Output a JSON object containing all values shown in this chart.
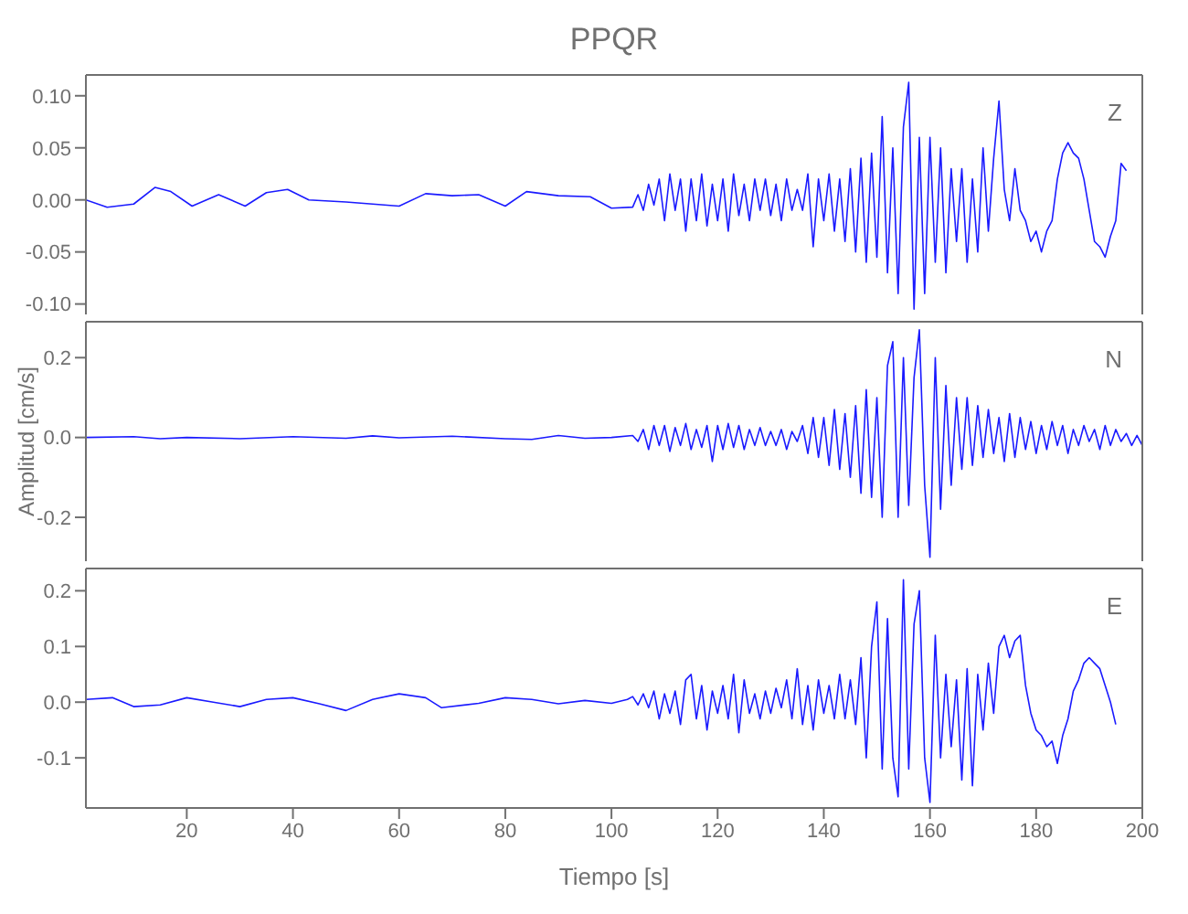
{
  "chart_data": [
    {
      "type": "line",
      "title": "PPQR",
      "annotations": [
        "Z"
      ],
      "color": "#1a1aff",
      "xlim": [
        1,
        200
      ],
      "xticks": [
        20,
        40,
        60,
        80,
        100,
        120,
        140,
        160,
        180,
        200
      ],
      "ylim": [
        -0.11,
        0.12
      ],
      "yticks": [
        {
          "value": -0.1,
          "label": "-0.10"
        },
        {
          "value": -0.05,
          "label": "-0.05"
        },
        {
          "value": 0,
          "label": "0.00"
        },
        {
          "value": 0.05,
          "label": "0.05"
        },
        {
          "value": 0.1,
          "label": "0.10"
        }
      ],
      "tick_labels": "y",
      "x": [
        1,
        5,
        10,
        14,
        17,
        21,
        26,
        31,
        35,
        39,
        43,
        50,
        55,
        60,
        65,
        70,
        75,
        80,
        84,
        90,
        96,
        100,
        104,
        105,
        106,
        107,
        108,
        109,
        110,
        111,
        112,
        113,
        114,
        115,
        116,
        117,
        118,
        119,
        120,
        121,
        122,
        123,
        124,
        125,
        126,
        127,
        128,
        129,
        130,
        131,
        132,
        133,
        134,
        135,
        136,
        137,
        138,
        139,
        140,
        141,
        142,
        143,
        144,
        145,
        146,
        147,
        148,
        149,
        150,
        151,
        152,
        153,
        154,
        155,
        156,
        157,
        158,
        159,
        160,
        161,
        162,
        163,
        164,
        165,
        166,
        167,
        168,
        169,
        170,
        171,
        172,
        173,
        174,
        175,
        176,
        177,
        178,
        179,
        180,
        181,
        182,
        183,
        184,
        185,
        186,
        187,
        188,
        189,
        190,
        191,
        192,
        193,
        194,
        195,
        196,
        197
      ],
      "values": [
        0,
        -0.007,
        -0.004,
        0.012,
        0.008,
        -0.006,
        0.005,
        -0.006,
        0.007,
        0.01,
        0,
        -0.002,
        -0.004,
        -0.006,
        0.006,
        0.004,
        0.005,
        -0.006,
        0.008,
        0.004,
        0.003,
        -0.008,
        -0.007,
        0.005,
        -0.01,
        0.015,
        -0.005,
        0.02,
        -0.02,
        0.025,
        -0.01,
        0.02,
        -0.03,
        0.02,
        -0.02,
        0.025,
        -0.025,
        0.015,
        -0.02,
        0.02,
        -0.03,
        0.025,
        -0.015,
        0.015,
        -0.02,
        0.02,
        -0.01,
        0.02,
        -0.015,
        0.015,
        -0.02,
        0.02,
        -0.01,
        0.01,
        -0.01,
        0.025,
        -0.045,
        0.02,
        -0.02,
        0.025,
        -0.03,
        0.02,
        -0.04,
        0.03,
        -0.05,
        0.04,
        -0.06,
        0.045,
        -0.055,
        0.08,
        -0.07,
        0.05,
        -0.09,
        0.07,
        0.113,
        -0.105,
        0.06,
        -0.09,
        0.06,
        -0.06,
        0.05,
        -0.07,
        0.03,
        -0.04,
        0.03,
        -0.06,
        0.02,
        -0.05,
        0.05,
        -0.03,
        0.04,
        0.095,
        0.01,
        -0.02,
        0.03,
        -0.01,
        -0.02,
        -0.04,
        -0.03,
        -0.05,
        -0.03,
        -0.02,
        0.02,
        0.045,
        0.055,
        0.045,
        0.04,
        0.02,
        -0.01,
        -0.04,
        -0.045,
        -0.055,
        -0.035,
        -0.02,
        0.035,
        0.028
      ]
    },
    {
      "type": "line",
      "ylabel": "Amplitud [cm/s]",
      "annotations": [
        "N"
      ],
      "color": "#1a1aff",
      "xlim": [
        1,
        200
      ],
      "xticks": [
        20,
        40,
        60,
        80,
        100,
        120,
        140,
        160,
        180,
        200
      ],
      "ylim": [
        -0.31,
        0.29
      ],
      "yticks": [
        {
          "value": -0.2,
          "label": "-0.2"
        },
        {
          "value": 0,
          "label": "0.0"
        },
        {
          "value": 0.2,
          "label": "0.2"
        }
      ],
      "tick_labels": "y",
      "x": [
        1,
        10,
        15,
        20,
        30,
        40,
        50,
        55,
        60,
        70,
        80,
        85,
        90,
        95,
        100,
        104,
        105,
        106,
        107,
        108,
        109,
        110,
        111,
        112,
        113,
        114,
        115,
        116,
        117,
        118,
        119,
        120,
        121,
        122,
        123,
        124,
        125,
        126,
        127,
        128,
        129,
        130,
        131,
        132,
        133,
        134,
        135,
        136,
        137,
        138,
        139,
        140,
        141,
        142,
        143,
        144,
        145,
        146,
        147,
        148,
        149,
        150,
        151,
        152,
        153,
        154,
        155,
        156,
        157,
        158,
        159,
        160,
        161,
        162,
        163,
        164,
        165,
        166,
        167,
        168,
        169,
        170,
        171,
        172,
        173,
        174,
        175,
        176,
        177,
        178,
        179,
        180,
        181,
        182,
        183,
        184,
        185,
        186,
        187,
        188,
        189,
        190,
        191,
        192,
        193,
        194,
        195,
        196,
        197,
        198,
        199,
        200
      ],
      "values": [
        0,
        0.002,
        -0.003,
        0,
        -0.003,
        0.002,
        -0.002,
        0.004,
        -0.001,
        0.003,
        -0.003,
        -0.005,
        0.005,
        -0.002,
        0,
        0.005,
        -0.01,
        0.02,
        -0.03,
        0.03,
        -0.02,
        0.03,
        -0.035,
        0.025,
        -0.02,
        0.035,
        -0.03,
        0.02,
        -0.025,
        0.03,
        -0.06,
        0.03,
        -0.03,
        0.035,
        -0.025,
        0.03,
        -0.03,
        0.02,
        -0.02,
        0.025,
        -0.02,
        0.015,
        -0.02,
        0.02,
        -0.03,
        0.015,
        -0.01,
        0.03,
        -0.04,
        0.05,
        -0.05,
        0.05,
        -0.07,
        0.07,
        -0.08,
        0.06,
        -0.1,
        0.08,
        -0.14,
        0.12,
        -0.15,
        0.1,
        -0.2,
        0.18,
        0.24,
        -0.2,
        0.2,
        -0.17,
        0.15,
        0.27,
        -0.12,
        -0.3,
        0.2,
        -0.18,
        0.13,
        -0.12,
        0.1,
        -0.08,
        0.1,
        -0.07,
        0.08,
        -0.05,
        0.07,
        -0.04,
        0.05,
        -0.06,
        0.06,
        -0.05,
        0.05,
        -0.03,
        0.04,
        -0.04,
        0.03,
        -0.03,
        0.04,
        -0.02,
        0.03,
        -0.04,
        0.02,
        -0.02,
        0.03,
        -0.01,
        0.02,
        -0.03,
        0.03,
        -0.02,
        0.02,
        -0.01,
        0.01,
        -0.02,
        0.005,
        -0.02
      ]
    },
    {
      "type": "line",
      "xlabel": "Tiempo [s]",
      "annotations": [
        "E"
      ],
      "color": "#1a1aff",
      "xlim": [
        1,
        200
      ],
      "xticks": [
        20,
        40,
        60,
        80,
        100,
        120,
        140,
        160,
        180,
        200
      ],
      "ylim": [
        -0.19,
        0.24
      ],
      "yticks": [
        {
          "value": -0.1,
          "label": "-0.1"
        },
        {
          "value": 0,
          "label": "0.0"
        },
        {
          "value": 0.1,
          "label": "0.1"
        },
        {
          "value": 0.2,
          "label": "0.2"
        }
      ],
      "x": [
        1,
        6,
        10,
        15,
        20,
        25,
        30,
        35,
        40,
        45,
        50,
        55,
        60,
        65,
        68,
        75,
        80,
        85,
        90,
        95,
        100,
        103,
        104,
        105,
        106,
        107,
        108,
        109,
        110,
        111,
        112,
        113,
        114,
        115,
        116,
        117,
        118,
        119,
        120,
        121,
        122,
        123,
        124,
        125,
        126,
        127,
        128,
        129,
        130,
        131,
        132,
        133,
        134,
        135,
        136,
        137,
        138,
        139,
        140,
        141,
        142,
        143,
        144,
        145,
        146,
        147,
        148,
        149,
        150,
        151,
        152,
        153,
        154,
        155,
        156,
        157,
        158,
        159,
        160,
        161,
        162,
        163,
        164,
        165,
        166,
        167,
        168,
        169,
        170,
        171,
        172,
        173,
        174,
        175,
        176,
        177,
        178,
        179,
        180,
        181,
        182,
        183,
        184,
        185,
        186,
        187,
        188,
        189,
        190,
        191,
        192,
        193,
        194,
        195
      ],
      "values": [
        0.005,
        0.008,
        -0.008,
        -0.005,
        0.008,
        0,
        -0.008,
        0.005,
        0.008,
        -0.003,
        -0.015,
        0.005,
        0.015,
        0.008,
        -0.01,
        -0.002,
        0.008,
        0.005,
        -0.003,
        0.003,
        -0.002,
        0.005,
        0.01,
        -0.005,
        0.015,
        -0.01,
        0.02,
        -0.03,
        0.015,
        -0.02,
        0.02,
        -0.04,
        0.04,
        0.05,
        -0.03,
        0.03,
        -0.05,
        0.02,
        -0.02,
        0.03,
        -0.03,
        0.05,
        -0.055,
        0.04,
        -0.02,
        0.015,
        -0.03,
        0.02,
        -0.02,
        0.025,
        -0.01,
        0.04,
        -0.03,
        0.06,
        -0.04,
        0.03,
        -0.05,
        0.04,
        -0.02,
        0.03,
        -0.03,
        0.05,
        -0.03,
        0.04,
        -0.04,
        0.08,
        -0.1,
        0.1,
        0.18,
        -0.12,
        0.15,
        -0.1,
        -0.17,
        0.22,
        -0.12,
        0.14,
        0.2,
        -0.1,
        -0.18,
        0.12,
        -0.1,
        0.05,
        -0.08,
        0.04,
        -0.14,
        0.06,
        -0.15,
        0.05,
        -0.05,
        0.07,
        -0.02,
        0.1,
        0.12,
        0.08,
        0.11,
        0.12,
        0.03,
        -0.02,
        -0.05,
        -0.06,
        -0.08,
        -0.07,
        -0.11,
        -0.06,
        -0.03,
        0.02,
        0.04,
        0.07,
        0.08,
        0.07,
        0.06,
        0.03,
        0,
        -0.04
      ]
    }
  ]
}
